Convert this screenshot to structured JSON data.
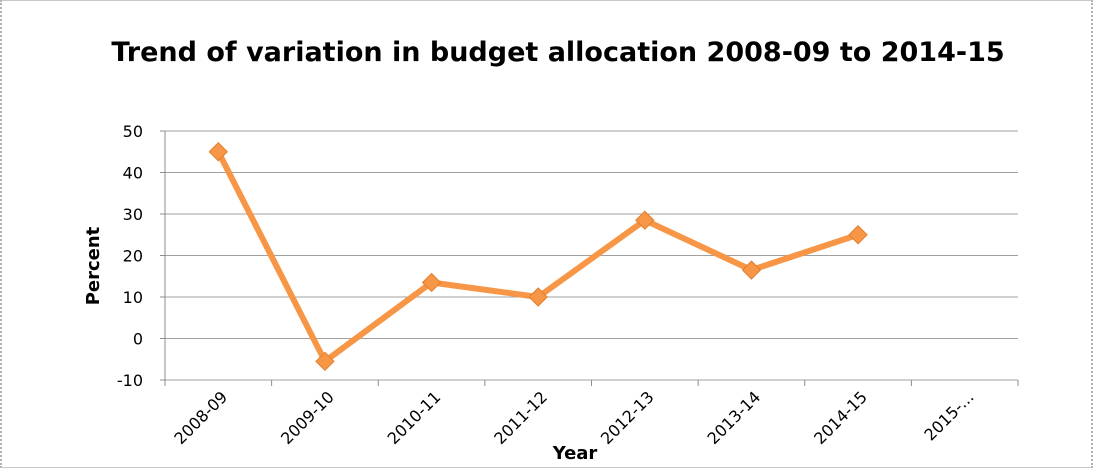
{
  "chart_data": {
    "type": "line",
    "title": "Trend of variation in budget allocation 2008-09 to 2014-15",
    "xlabel": "Year",
    "ylabel": "Percent",
    "categories": [
      "2008-09",
      "2009-10",
      "2010-11",
      "2011-12",
      "2012-13",
      "2013-14",
      "2014-15",
      "2015-..."
    ],
    "series": [
      {
        "values": [
          45,
          -5.5,
          13.5,
          10,
          28.5,
          16.5,
          25,
          null
        ]
      }
    ],
    "ylim": [
      -10,
      50
    ],
    "yticks": [
      -10,
      0,
      10,
      20,
      30,
      40,
      50
    ],
    "grid": true,
    "legend": "none",
    "line_color": "#f79646"
  }
}
